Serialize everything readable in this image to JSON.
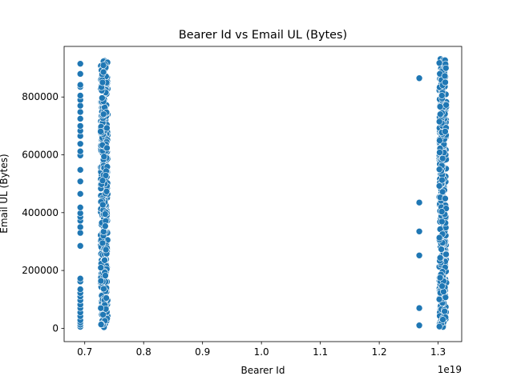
{
  "chart_data": {
    "type": "scatter",
    "title": "Bearer Id vs Email UL (Bytes)",
    "xlabel": "Bearer Id",
    "ylabel": "Email UL (Bytes)",
    "x_offset_label": "1e19",
    "xlim": [
      0.665,
      1.34
    ],
    "ylim": [
      -46000,
      975000
    ],
    "xticks": [
      0.7,
      0.8,
      0.9,
      1.0,
      1.1,
      1.2,
      1.3
    ],
    "xtick_labels": [
      "0.7",
      "0.8",
      "0.9",
      "1.0",
      "1.1",
      "1.2",
      "1.3"
    ],
    "yticks": [
      0,
      200000,
      400000,
      600000,
      800000
    ],
    "ytick_labels": [
      "0",
      "200000",
      "400000",
      "600000",
      "800000"
    ],
    "grid": false,
    "marker_color": "#1f77b4",
    "marker_edge_color": "#ffffff",
    "x_unit_note": "x values in units of 1e19",
    "clusters": [
      {
        "x_center": 0.6925,
        "x_jitter": 0,
        "y": [
          5000,
          12000,
          20000,
          28000,
          42000,
          55000,
          70000,
          82000,
          97000,
          110000,
          122000,
          135000,
          162000,
          172000,
          285000,
          330000,
          350000,
          372000,
          385000,
          398000,
          418000,
          465000,
          508000,
          548000,
          598000,
          612000,
          638000,
          665000,
          683000,
          700000,
          725000,
          748000,
          770000,
          790000,
          805000,
          835000,
          842000,
          880000,
          915000
        ]
      },
      {
        "x_center": 0.733,
        "x_jitter": 0.006,
        "y_min": 2000,
        "y_max": 930000,
        "dense": true
      },
      {
        "x_center": 1.268,
        "x_jitter": 0,
        "y": [
          10000,
          70000,
          252000,
          335000,
          435000,
          865000
        ]
      },
      {
        "x_center": 1.308,
        "x_jitter": 0.006,
        "y_min": 2000,
        "y_max": 932000,
        "dense": true
      }
    ]
  }
}
